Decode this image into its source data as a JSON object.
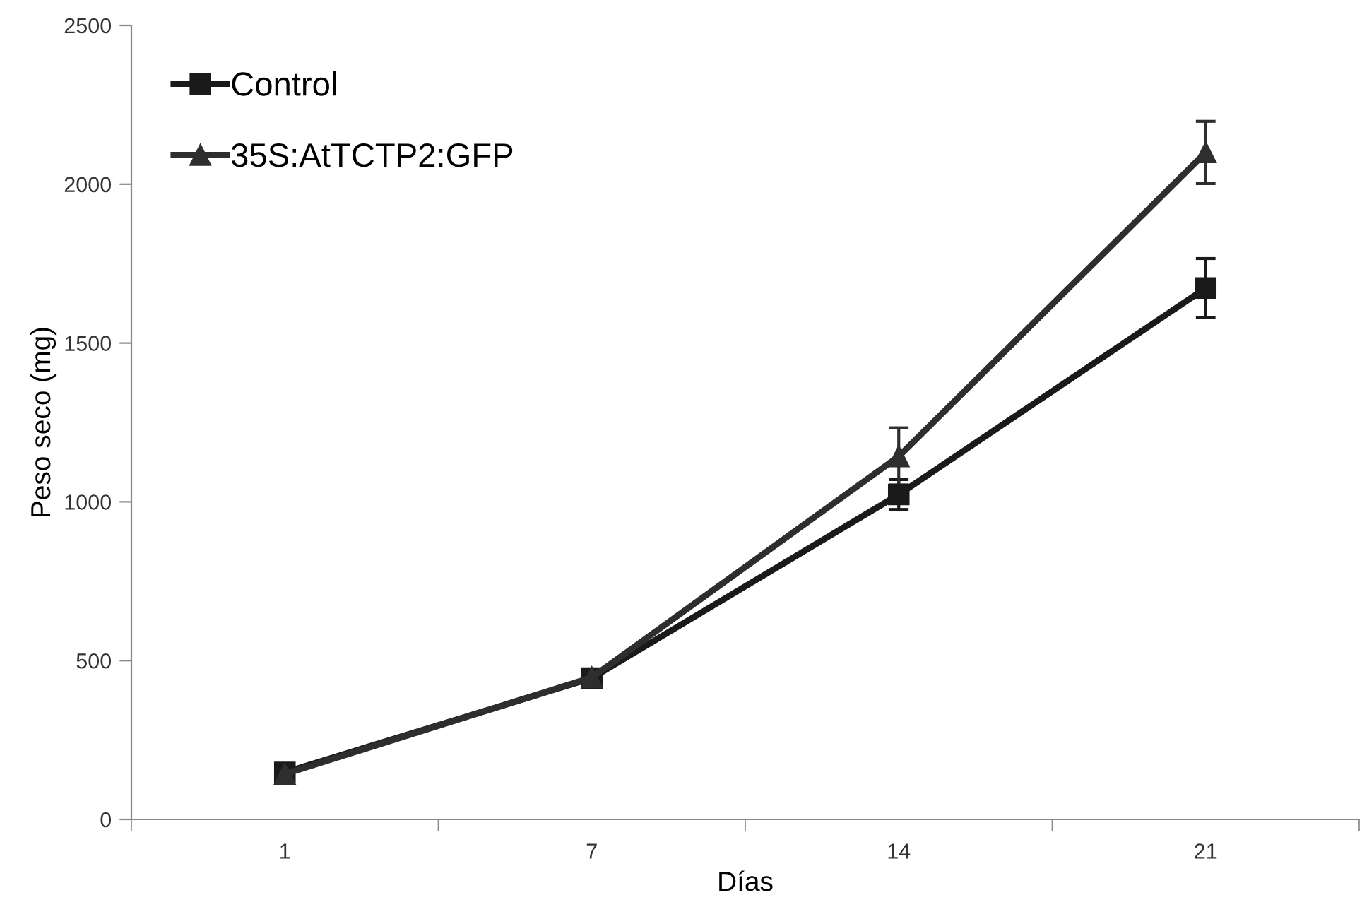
{
  "chart_data": {
    "type": "line",
    "xlabel": "Días",
    "ylabel": "Peso seco (mg)",
    "categories": [
      "1",
      "7",
      "14",
      "21"
    ],
    "ylim": [
      0,
      2500
    ],
    "yticks": [
      0,
      500,
      1000,
      1500,
      2000,
      2500
    ],
    "legend": "top left",
    "grid": false,
    "series": [
      {
        "name": "Control",
        "color": "#1a1a1a",
        "marker": "square",
        "values": [
          148,
          445,
          1023,
          1673
        ],
        "errors": [
          null,
          null,
          47,
          93
        ]
      },
      {
        "name": "35S:AtTCTP2:GFP",
        "color": "#2e2e2e",
        "marker": "triangle",
        "values": [
          143,
          447,
          1143,
          2100
        ],
        "errors": [
          null,
          null,
          90,
          98
        ]
      }
    ]
  }
}
